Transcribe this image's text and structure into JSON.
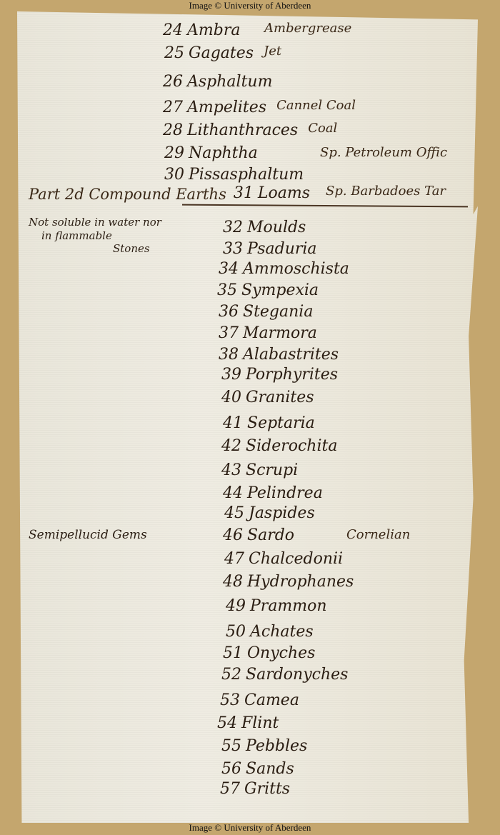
{
  "credit_top": "Image © University of Aberdeen",
  "credit_bottom": "Image © University of Aberdeen",
  "section_heading": "Part 2d Compound Earths",
  "left_notes": {
    "line1": "Not soluble in water nor",
    "line2": "in flammable",
    "line3": "Stones",
    "gems": "Semipellucid Gems"
  },
  "entries": [
    {
      "num": "24",
      "name": "Ambra",
      "note": "Ambergrease"
    },
    {
      "num": "25",
      "name": "Gagates",
      "note": "Jet"
    },
    {
      "num": "26",
      "name": "Asphaltum",
      "note": ""
    },
    {
      "num": "27",
      "name": "Ampelites",
      "note": "Cannel Coal"
    },
    {
      "num": "28",
      "name": "Lithanthraces",
      "note": "Coal"
    },
    {
      "num": "29",
      "name": "Naphtha",
      "note": "Sp. Petroleum Offic"
    },
    {
      "num": "30",
      "name": "Pissasphaltum",
      "note": "Sp. Barbadoes Tar"
    },
    {
      "num": "31",
      "name": "Loams",
      "note": ""
    },
    {
      "num": "32",
      "name": "Moulds",
      "note": ""
    },
    {
      "num": "33",
      "name": "Psaduria",
      "note": ""
    },
    {
      "num": "34",
      "name": "Ammoschista",
      "note": ""
    },
    {
      "num": "35",
      "name": "Sympexia",
      "note": ""
    },
    {
      "num": "36",
      "name": "Stegania",
      "note": ""
    },
    {
      "num": "37",
      "name": "Marmora",
      "note": ""
    },
    {
      "num": "38",
      "name": "Alabastrites",
      "note": ""
    },
    {
      "num": "39",
      "name": "Porphyrites",
      "note": ""
    },
    {
      "num": "40",
      "name": "Granites",
      "note": ""
    },
    {
      "num": "41",
      "name": "Septaria",
      "note": ""
    },
    {
      "num": "42",
      "name": "Siderochita",
      "note": ""
    },
    {
      "num": "43",
      "name": "Scrupi",
      "note": ""
    },
    {
      "num": "44",
      "name": "Pelindrea",
      "note": ""
    },
    {
      "num": "45",
      "name": "Jaspides",
      "note": ""
    },
    {
      "num": "46",
      "name": "Sardo",
      "note": "Cornelian"
    },
    {
      "num": "47",
      "name": "Chalcedonii",
      "note": ""
    },
    {
      "num": "48",
      "name": "Hydrophanes",
      "note": ""
    },
    {
      "num": "49",
      "name": "Prammon",
      "note": ""
    },
    {
      "num": "50",
      "name": "Achates",
      "note": ""
    },
    {
      "num": "51",
      "name": "Onyches",
      "note": ""
    },
    {
      "num": "52",
      "name": "Sardonyches",
      "note": ""
    },
    {
      "num": "53",
      "name": "Camea",
      "note": ""
    },
    {
      "num": "54",
      "name": "Flint",
      "note": ""
    },
    {
      "num": "55",
      "name": "Pebbles",
      "note": ""
    },
    {
      "num": "56",
      "name": "Sands",
      "note": ""
    },
    {
      "num": "57",
      "name": "Gritts",
      "note": ""
    }
  ]
}
